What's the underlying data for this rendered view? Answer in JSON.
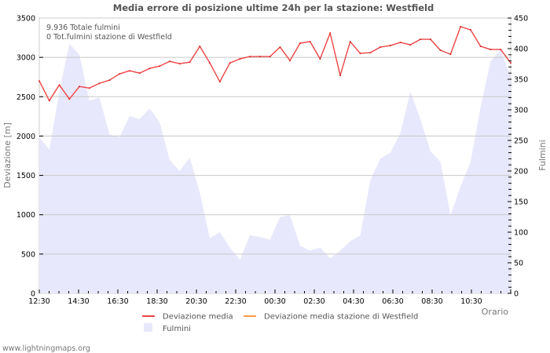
{
  "chart_data": {
    "type": "line",
    "title": "Media errore di posizione ultime 24h per la stazione: Westfield",
    "xlabel": "Orario",
    "ylabel": "Deviazione  [m]",
    "y2label": "Fulmini",
    "ylim": [
      0,
      3500
    ],
    "y2lim": [
      0,
      450
    ],
    "yticks": [
      0,
      500,
      1000,
      1500,
      2000,
      2500,
      3000,
      3500
    ],
    "y2ticks": [
      0,
      50,
      100,
      150,
      200,
      250,
      300,
      350,
      400,
      450
    ],
    "xticks": [
      "12:30",
      "14:30",
      "16:30",
      "18:30",
      "20:30",
      "22:30",
      "00:30",
      "02:30",
      "04:30",
      "06:30",
      "08:30",
      "10:30"
    ],
    "grid": true,
    "legend_position": "bottom",
    "annotations": [
      "9.936 Totale fulmini",
      "0 Tot.fulmini stazione di Westfield"
    ],
    "series": [
      {
        "name": "Deviazione media",
        "axis": "left",
        "type": "line",
        "color": "#ee4444",
        "values": [
          2700,
          2450,
          2650,
          2470,
          2630,
          2610,
          2670,
          2710,
          2790,
          2830,
          2800,
          2860,
          2890,
          2950,
          2920,
          2940,
          3140,
          2930,
          2690,
          2930,
          2980,
          3010,
          3010,
          3010,
          3130,
          2960,
          3180,
          3200,
          2980,
          3310,
          2770,
          3200,
          3050,
          3060,
          3130,
          3150,
          3190,
          3160,
          3230,
          3230,
          3090,
          3040,
          3390,
          3350,
          3140,
          3100,
          3100,
          2930
        ]
      },
      {
        "name": "Deviazione media stazione di Westfield",
        "axis": "left",
        "type": "line",
        "color": "#ff9944",
        "values": []
      },
      {
        "name": "Fulmini",
        "axis": "right",
        "type": "area",
        "color": "#e8e8fc",
        "values": [
          255,
          235,
          330,
          408,
          390,
          315,
          320,
          260,
          255,
          290,
          285,
          302,
          280,
          218,
          200,
          222,
          165,
          90,
          100,
          75,
          55,
          95,
          92,
          88,
          125,
          128,
          78,
          70,
          75,
          57,
          70,
          85,
          95,
          185,
          220,
          230,
          262,
          330,
          285,
          232,
          215,
          128,
          175,
          215,
          305,
          380,
          398,
          355
        ]
      }
    ]
  },
  "legend": {
    "items": [
      {
        "label": "Deviazione media",
        "color": "#ee4444",
        "kind": "line"
      },
      {
        "label": "Deviazione media stazione di Westfield",
        "color": "#ff9944",
        "kind": "line"
      },
      {
        "label": "Fulmini",
        "color": "#e8e8fc",
        "kind": "box"
      }
    ]
  },
  "footer": {
    "source": "www.lightningmaps.org"
  }
}
